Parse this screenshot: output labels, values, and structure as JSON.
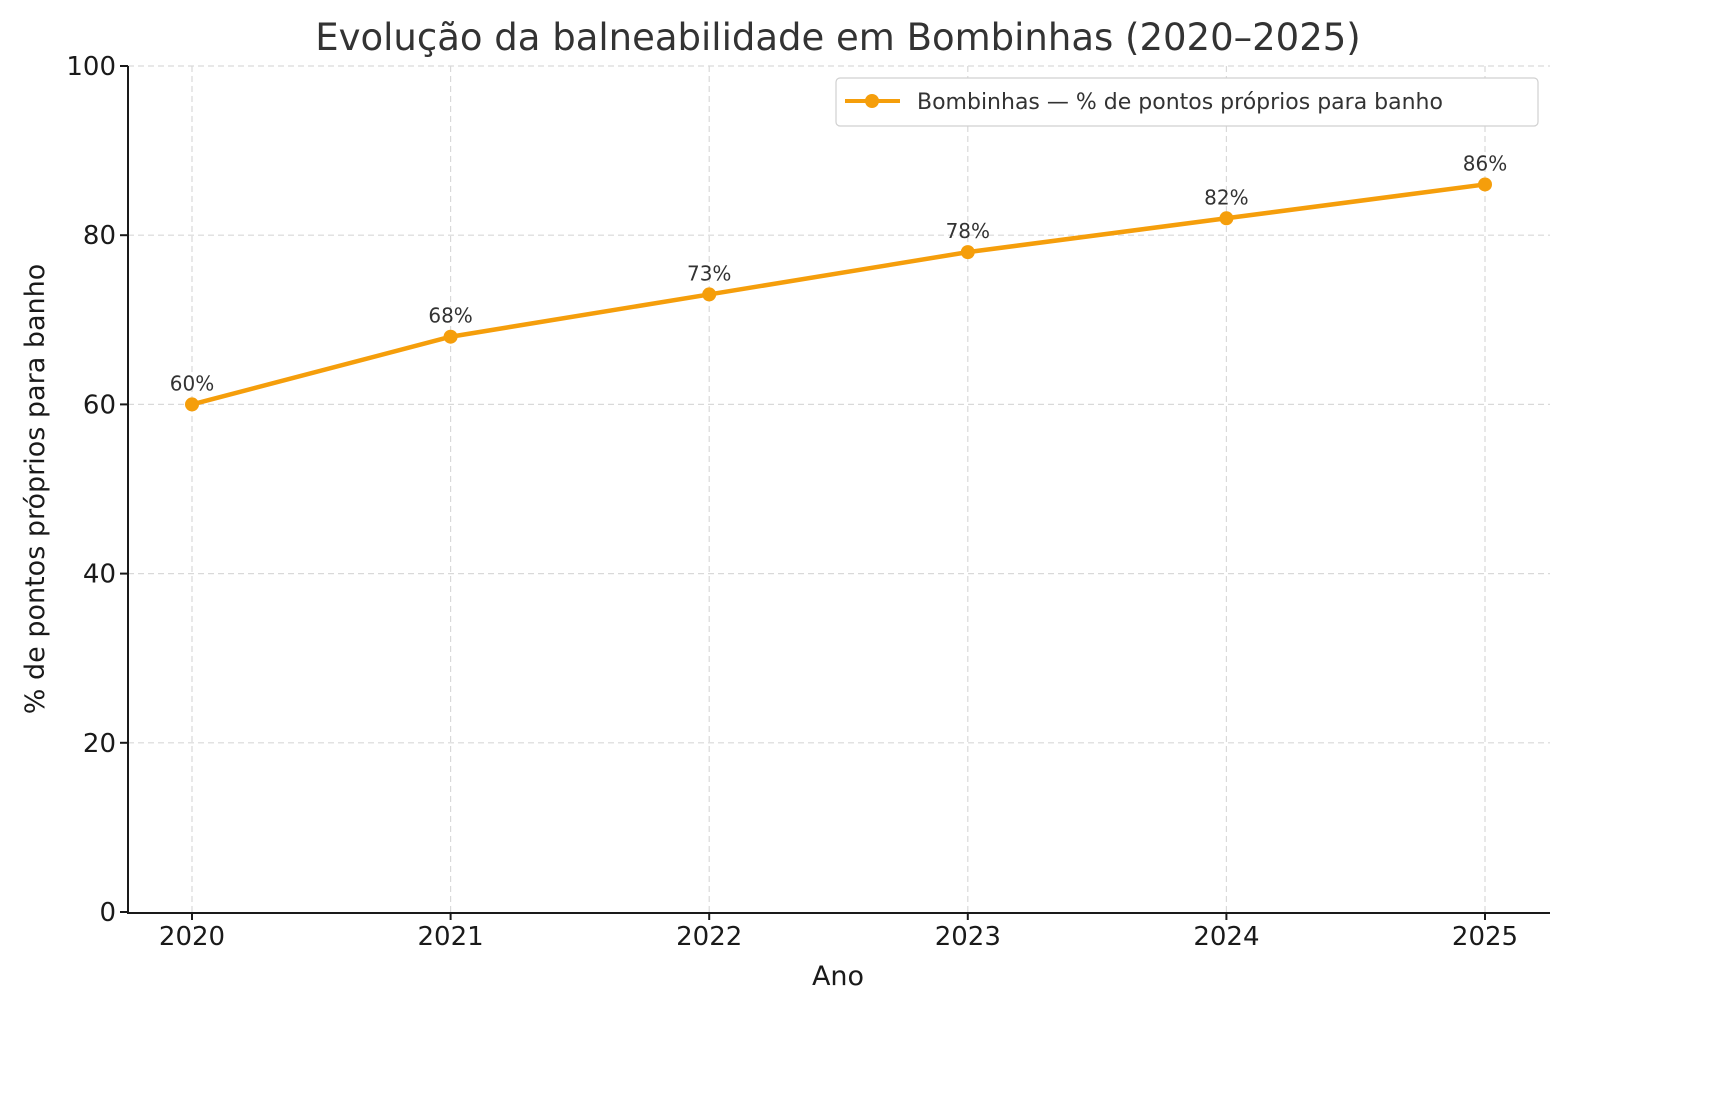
{
  "chart_data": {
    "type": "line",
    "title": "Evolução da balneabilidade em Bombinhas (2020–2025)",
    "xlabel": "Ano",
    "ylabel": "% de pontos próprios para banho",
    "categories": [
      "2020",
      "2021",
      "2022",
      "2023",
      "2024",
      "2025"
    ],
    "series": [
      {
        "name": "Bombinhas — % de pontos próprios para banho",
        "values": [
          60,
          68,
          73,
          78,
          82,
          86
        ],
        "labels": [
          "60%",
          "68%",
          "73%",
          "78%",
          "82%",
          "86%"
        ],
        "color": "#f59e0b",
        "marker": "circle"
      }
    ],
    "ylim": [
      0,
      100
    ],
    "yticks": [
      "0",
      "20",
      "40",
      "60",
      "80",
      "100"
    ],
    "grid": true,
    "legend_position": "upper right"
  }
}
